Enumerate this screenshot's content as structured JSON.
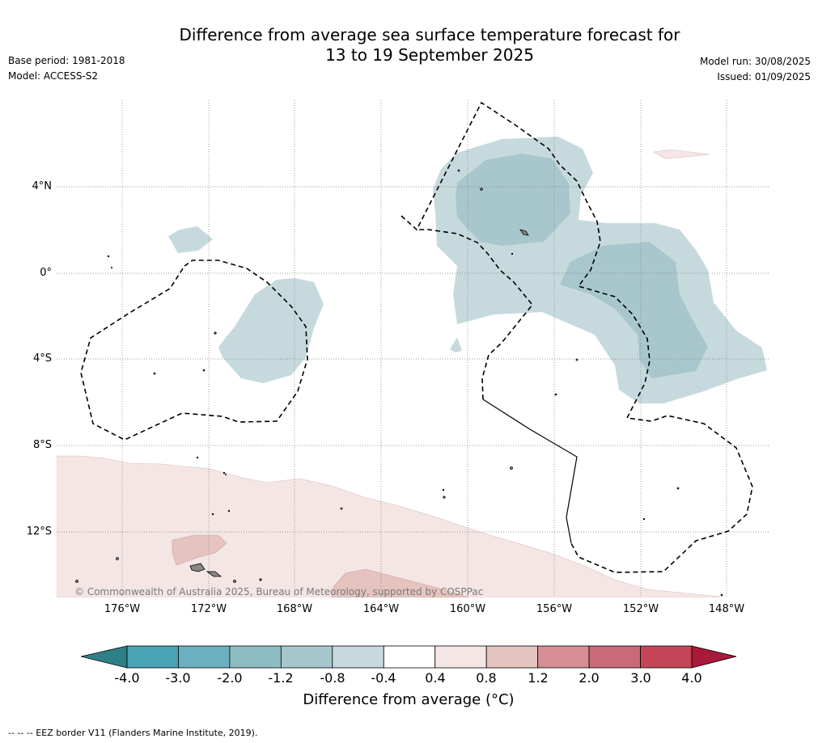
{
  "title_line1": "Difference from average sea surface temperature forecast for",
  "title_line2": "13 to 19 September 2025",
  "base_period": "Base period: 1981-2018",
  "model": "Model: ACCESS-S2",
  "model_run": "Model run: 30/08/2025",
  "issued": "Issued: 01/09/2025",
  "map": {
    "lat_labels": [
      "4°N",
      "0°",
      "4°S",
      "8°S",
      "12°S"
    ],
    "lon_labels": [
      "176°W",
      "172°W",
      "168°W",
      "164°W",
      "160°W",
      "156°W",
      "152°W",
      "148°W"
    ],
    "copyright": "© Commonwealth of Australia 2025, Bureau of Meteorology, supported by COSPPac"
  },
  "colorbar": {
    "ticks": [
      "-4.0",
      "-3.0",
      "-2.0",
      "-1.2",
      "-0.8",
      "-0.4",
      "0.4",
      "0.8",
      "1.2",
      "2.0",
      "3.0",
      "4.0"
    ],
    "colors": [
      "#4aa3b5",
      "#6ab0bf",
      "#8ebcc3",
      "#a8c7cc",
      "#c6dadd",
      "#ffffff",
      "#f4e6e5",
      "#e5c3bf",
      "#d48e94",
      "#c96a77",
      "#c24657"
    ],
    "under_color": "#2f7f87",
    "over_color": "#a8193a",
    "label": "Difference from average (°C)"
  },
  "footnote": "--  --  -- EEZ border V11 (Flanders Marine Institute, 2019)."
}
